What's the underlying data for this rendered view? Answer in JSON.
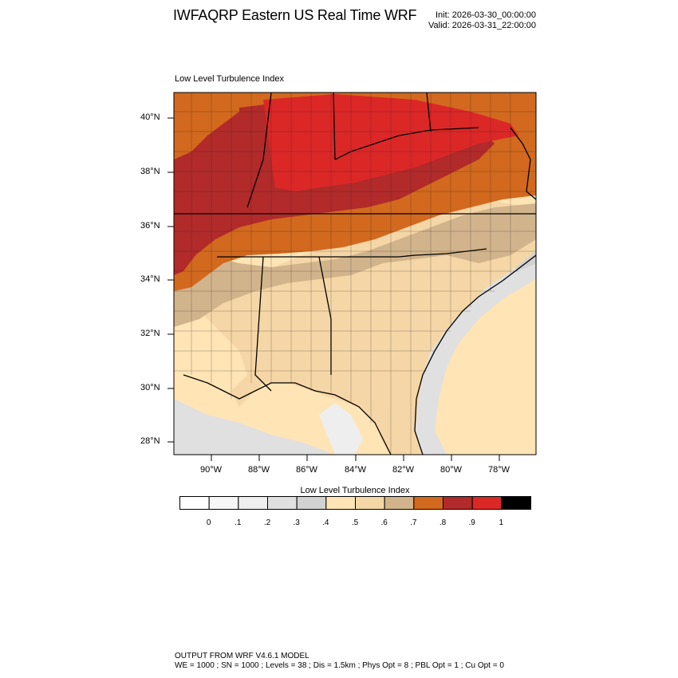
{
  "header": {
    "title": "IWFAQRP Eastern US Real Time WRF",
    "init": "Init: 2026-03-30_00:00:00",
    "valid": "Valid: 2026-03-31_22:00:00"
  },
  "map": {
    "subtitle": "Low Level Turbulence Index",
    "lat_labels": [
      "40°N",
      "38°N",
      "36°N",
      "34°N",
      "32°N",
      "30°N",
      "28°N"
    ],
    "lon_labels": [
      "90°W",
      "88°W",
      "86°W",
      "84°W",
      "82°W",
      "80°W",
      "78°W"
    ],
    "region": "Southeastern United States (Gulf Coast to Ohio Valley, Atlantic coast)"
  },
  "colorbar": {
    "title": "Low Level Turbulence Index",
    "colors": [
      "#ffffff",
      "#f7f7f7",
      "#eeeeee",
      "#e0e0e0",
      "#d2d2d2",
      "#ffe4b5",
      "#f5d6a6",
      "#d2b48c",
      "#d2691e",
      "#b22a2a",
      "#dc2727",
      "#000000"
    ],
    "tick_labels": [
      "0",
      ".1",
      ".2",
      ".3",
      ".4",
      ".5",
      ".6",
      ".7",
      ".8",
      ".9",
      "1"
    ]
  },
  "footer": {
    "line1": "OUTPUT FROM WRF V4.6.1 MODEL",
    "line2": "WE = 1000 ; SN = 1000 ; Levels = 38 ; Dis = 1.5km ; Phys Opt = 8 ; PBL Opt = 1 ; Cu Opt = 0"
  }
}
